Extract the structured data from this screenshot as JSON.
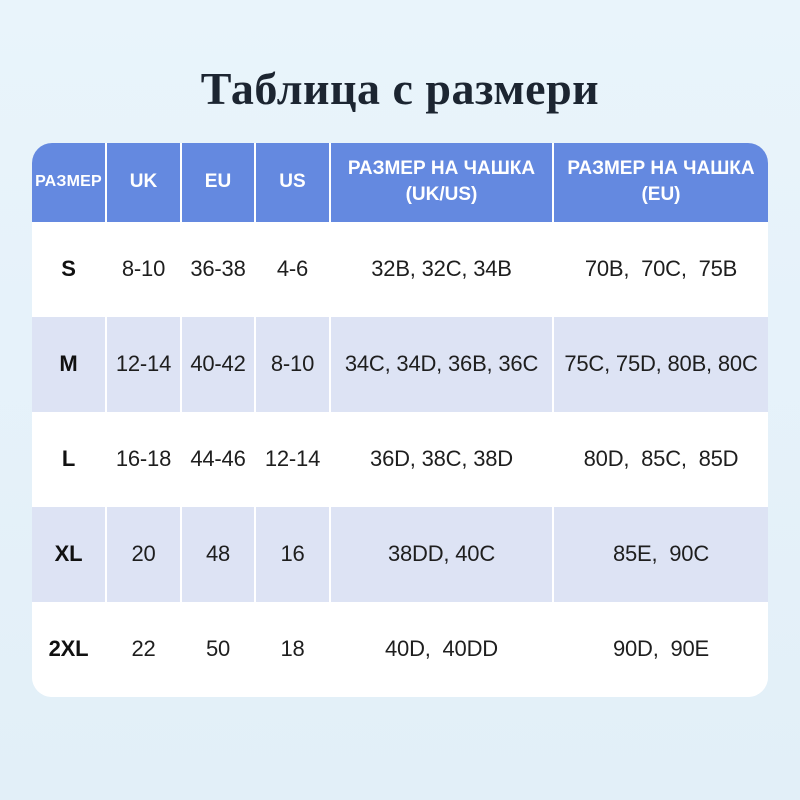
{
  "title": "Таблица с размери",
  "colors": {
    "page_background": "#e6f2fa",
    "header_blue": "#6489e0",
    "stripe_lavender": "#dde3f4",
    "table_white": "#ffffff",
    "title_text": "#1c2531",
    "body_text": "#1e1e1e"
  },
  "table": {
    "headers": [
      "РАЗМЕР",
      "UK",
      "EU",
      "US",
      "РАЗМЕР НА ЧАШКА\n(UK/US)",
      "РАЗМЕР НА ЧАШКА\n(EU)"
    ],
    "rows": [
      {
        "size": "S",
        "uk": "8-10",
        "eu": "36-38",
        "us": "4-6",
        "cup_ukus": "32B, 32C, 34B",
        "cup_eu": "70B,  70C,  75B"
      },
      {
        "size": "M",
        "uk": "12-14",
        "eu": "40-42",
        "us": "8-10",
        "cup_ukus": "34C, 34D, 36B, 36C",
        "cup_eu": "75C, 75D, 80B, 80C"
      },
      {
        "size": "L",
        "uk": "16-18",
        "eu": "44-46",
        "us": "12-14",
        "cup_ukus": "36D, 38C, 38D",
        "cup_eu": "80D,  85C,  85D"
      },
      {
        "size": "XL",
        "uk": "20",
        "eu": "48",
        "us": "16",
        "cup_ukus": "38DD, 40C",
        "cup_eu": "85E,  90C"
      },
      {
        "size": "2XL",
        "uk": "22",
        "eu": "50",
        "us": "18",
        "cup_ukus": "40D,  40DD",
        "cup_eu": "90D,  90E"
      }
    ]
  }
}
